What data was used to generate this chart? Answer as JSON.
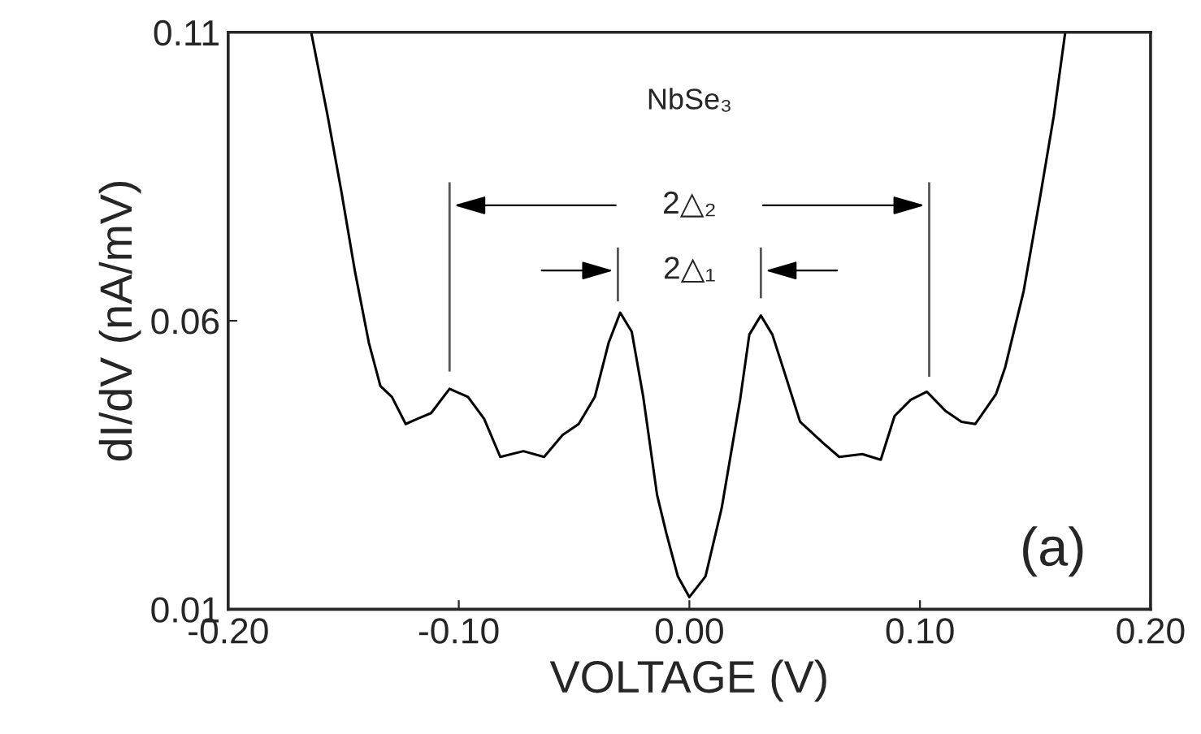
{
  "chart_data": {
    "type": "line",
    "xlabel": "VOLTAGE (V)",
    "ylabel": "dI/dV (nA/mV)",
    "x": [
      -0.164,
      -0.157,
      -0.151,
      -0.145,
      -0.139,
      -0.134,
      -0.129,
      -0.123,
      -0.118,
      -0.112,
      -0.104,
      -0.096,
      -0.089,
      -0.082,
      -0.072,
      -0.063,
      -0.055,
      -0.048,
      -0.041,
      -0.035,
      -0.03,
      -0.025,
      -0.02,
      -0.014,
      -0.01,
      -0.005,
      0.0,
      0.007,
      0.014,
      0.022,
      0.026,
      0.031,
      0.036,
      0.042,
      0.048,
      0.058,
      0.065,
      0.075,
      0.083,
      0.089,
      0.096,
      0.103,
      0.111,
      0.118,
      0.124,
      0.133,
      0.137,
      0.145,
      0.152,
      0.158,
      0.163
    ],
    "series": [
      {
        "color": "#000000",
        "values": [
          0.11,
          0.0958,
          0.0826,
          0.0685,
          0.0562,
          0.0487,
          0.0468,
          0.0421,
          0.043,
          0.044,
          0.0482,
          0.0468,
          0.043,
          0.0364,
          0.0374,
          0.0364,
          0.0402,
          0.0421,
          0.0468,
          0.0562,
          0.0614,
          0.0581,
          0.0468,
          0.0298,
          0.0232,
          0.0157,
          0.0121,
          0.0157,
          0.0275,
          0.0463,
          0.0576,
          0.0609,
          0.0576,
          0.0501,
          0.0425,
          0.0388,
          0.0364,
          0.0369,
          0.0359,
          0.0435,
          0.0463,
          0.0477,
          0.0444,
          0.0425,
          0.0421,
          0.0473,
          0.052,
          0.0652,
          0.0812,
          0.0954,
          0.11
        ]
      }
    ],
    "xlim": [
      -0.2,
      0.2
    ],
    "xticks": [
      {
        "value": -0.2,
        "label": "-0.20"
      },
      {
        "value": -0.1,
        "label": "-0.10"
      },
      {
        "value": 0,
        "label": "0.00"
      },
      {
        "value": 0.1,
        "label": "0.10"
      },
      {
        "value": 0.2,
        "label": "0.20"
      }
    ],
    "ylim": [
      0.01,
      0.11
    ],
    "yticks": [
      0.01,
      0.06,
      0.11
    ],
    "ref_lines": [
      {
        "axis": "x",
        "value": -0.104,
        "color": "#555555"
      },
      {
        "axis": "x",
        "value": 0.104,
        "color": "#555555"
      },
      {
        "axis": "x",
        "value": -0.031,
        "color": "#555555"
      },
      {
        "axis": "x",
        "value": 0.031,
        "color": "#555555"
      }
    ],
    "annotations": [
      "NbSe₃",
      "2△₂",
      "2△₁",
      "(a)"
    ],
    "grid": false,
    "legend": false,
    "marker": "none",
    "line_style": "solid"
  }
}
